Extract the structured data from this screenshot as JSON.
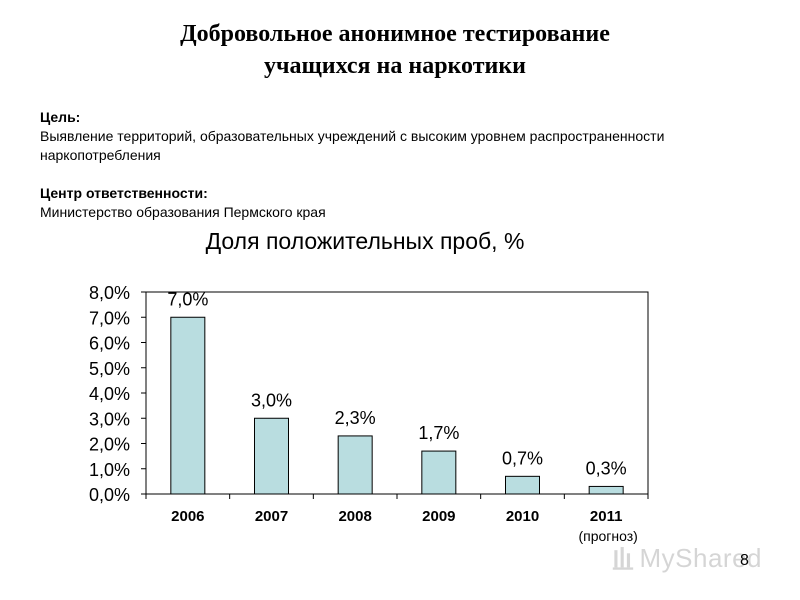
{
  "title": {
    "line1": "Добровольное анонимное тестирование",
    "line2": "учащихся на наркотики"
  },
  "goal": {
    "label": "Цель:",
    "text_line1": "Выявление территорий, образовательных учреждений с высоким уровнем распространенности",
    "text_line2": "наркопотребления"
  },
  "responsibility": {
    "label": "Центр ответственности:",
    "text": "Министерство образования Пермского края"
  },
  "chart_data": {
    "type": "bar",
    "title": "Доля положительных проб, %",
    "categories": [
      "2006",
      "2007",
      "2008",
      "2009",
      "2010",
      "2011"
    ],
    "category_sublabels": [
      "",
      "",
      "",
      "",
      "",
      "(прогноз)"
    ],
    "values": [
      7.0,
      3.0,
      2.3,
      1.7,
      0.7,
      0.3
    ],
    "data_labels": [
      "7,0%",
      "3,0%",
      "2,3%",
      "1,7%",
      "0,7%",
      "0,3%"
    ],
    "ylim": [
      0,
      8
    ],
    "yticks": [
      "0,0%",
      "1,0%",
      "2,0%",
      "3,0%",
      "4,0%",
      "5,0%",
      "6,0%",
      "7,0%",
      "8,0%"
    ],
    "xlabel": "",
    "ylabel": "",
    "grid": false,
    "bar_color": "#b9dde0"
  },
  "watermark": {
    "text": "MyShared"
  },
  "page_number": "8"
}
